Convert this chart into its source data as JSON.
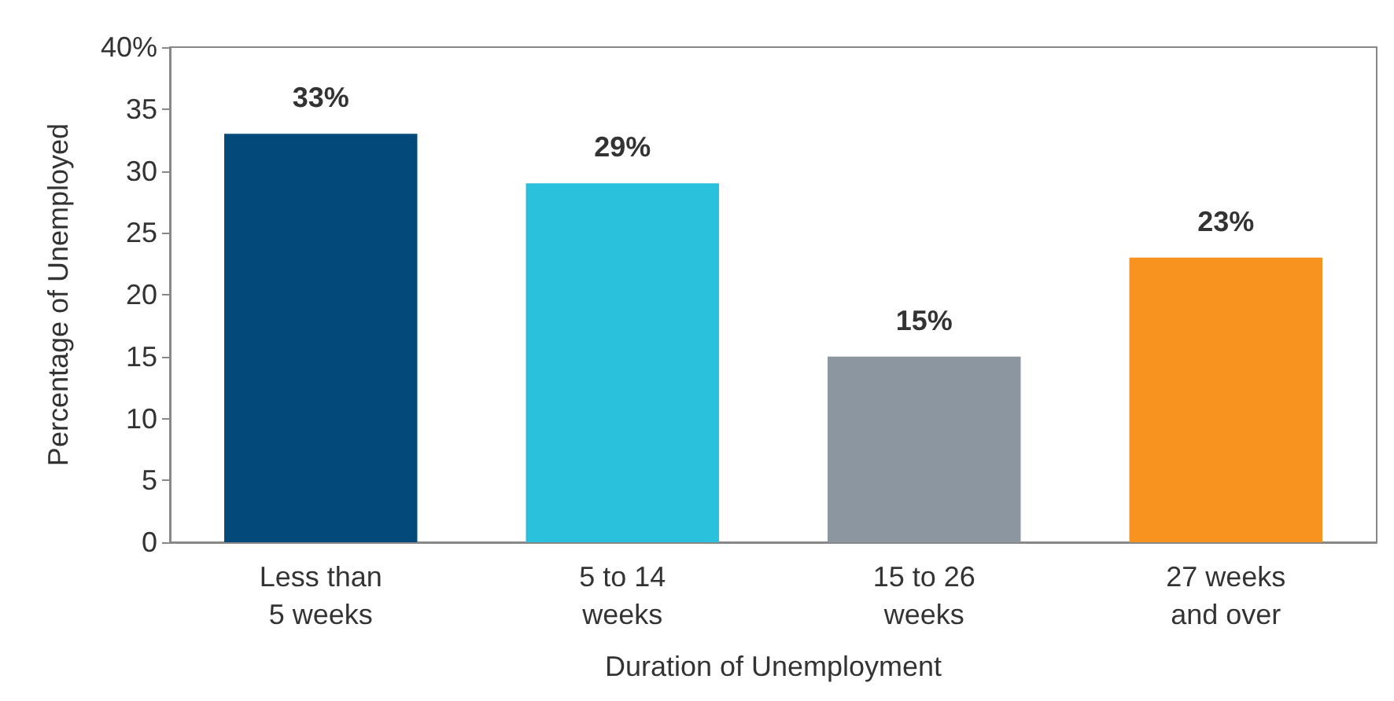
{
  "chart_data": {
    "type": "bar",
    "xlabel": "Duration of Unemployment",
    "ylabel": "Percentage of Unemployed",
    "categories": [
      "Less than\n5 weeks",
      "5 to 14\nweeks",
      "15 to 26\nweeks",
      "27 weeks\nand over"
    ],
    "values": [
      33,
      29,
      15,
      23
    ],
    "colors": [
      "#034a7a",
      "#29c1db",
      "#8c96a1",
      "#f7931e"
    ],
    "value_labels": [
      "33%",
      "29%",
      "15%",
      "23%"
    ],
    "ylim": [
      0,
      40
    ],
    "yticks": [
      0,
      5,
      10,
      15,
      20,
      25,
      30,
      35,
      {
        "value": 40,
        "label": "40%"
      }
    ],
    "grid": false
  }
}
